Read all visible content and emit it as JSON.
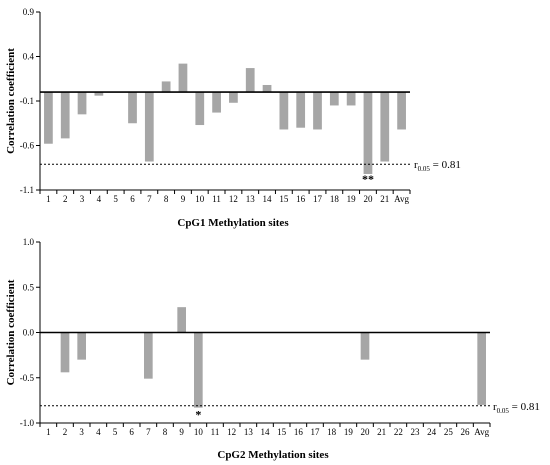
{
  "chart_data": [
    {
      "type": "bar",
      "xlabel": "CpG1 Methylation sites",
      "ylabel": "Correlation coefficient",
      "ylim": [
        -1.1,
        0.9
      ],
      "yticks": [
        "0.9",
        "0.4",
        "-0.1",
        "-0.6",
        "-1.1"
      ],
      "ytick_values": [
        0.9,
        0.4,
        -0.1,
        -0.6,
        -1.1
      ],
      "categories": [
        "1",
        "2",
        "3",
        "4",
        "5",
        "6",
        "7",
        "8",
        "9",
        "10",
        "11",
        "12",
        "13",
        "14",
        "15",
        "16",
        "17",
        "18",
        "19",
        "20",
        "21",
        "Avg"
      ],
      "values": [
        -0.58,
        -0.52,
        -0.25,
        -0.04,
        0.0,
        -0.35,
        -0.78,
        0.12,
        0.32,
        -0.37,
        -0.23,
        -0.12,
        0.27,
        0.08,
        -0.42,
        -0.4,
        -0.42,
        -0.15,
        -0.15,
        -0.92,
        -0.78,
        -0.42
      ],
      "bar_color": "#a6a6a6",
      "threshold": {
        "value": -0.81,
        "label_main": "r",
        "label_sub": "0.05",
        "label_rest": " = 0.81"
      },
      "annotations": [
        {
          "category": "20",
          "text": "**"
        }
      ],
      "grid": false
    },
    {
      "type": "bar",
      "xlabel": "CpG2 Methylation sites",
      "ylabel": "Correlation coefficient",
      "ylim": [
        -1.0,
        1.0
      ],
      "yticks": [
        "1.0",
        "0.5",
        "0.0",
        "-0.5",
        "-1.0"
      ],
      "ytick_values": [
        1.0,
        0.5,
        0.0,
        -0.5,
        -1.0
      ],
      "categories": [
        "1",
        "2",
        "3",
        "4",
        "5",
        "6",
        "7",
        "8",
        "9",
        "10",
        "11",
        "12",
        "13",
        "14",
        "15",
        "16",
        "17",
        "18",
        "19",
        "20",
        "21",
        "22",
        "23",
        "24",
        "25",
        "26",
        "Avg"
      ],
      "values": [
        0.0,
        -0.44,
        -0.3,
        0.0,
        0.0,
        0.0,
        -0.51,
        0.0,
        0.28,
        -0.83,
        0.0,
        0.0,
        0.0,
        0.0,
        0.0,
        0.0,
        0.0,
        0.0,
        0.0,
        -0.3,
        0.0,
        0.0,
        0.0,
        0.0,
        0.0,
        0.0,
        -0.8
      ],
      "bar_color": "#a6a6a6",
      "threshold": {
        "value": -0.81,
        "label_main": "r",
        "label_sub": "0.05",
        "label_rest": " = 0.81"
      },
      "annotations": [
        {
          "category": "10",
          "text": "*"
        }
      ],
      "grid": false
    }
  ]
}
